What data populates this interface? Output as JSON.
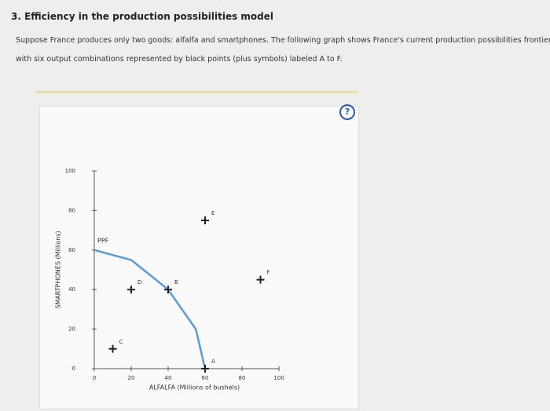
{
  "heading": "3. Efficiency in the production possibilities model",
  "intro": [
    "Suppose France produces only two goods: alfalfa and smartphones. The following graph shows France's current production possibilities frontier, along",
    "with six output combinations represented by black points (plus symbols) labeled A to F."
  ],
  "help": "?",
  "chart_data": {
    "type": "scatter",
    "x_label": "ALFALFA (Millions of bushels)",
    "y_label": "SMARTPHONES (Millions)",
    "xlim": [
      0,
      100
    ],
    "ylim": [
      0,
      100
    ],
    "xticks": [
      0,
      20,
      40,
      60,
      80,
      100
    ],
    "yticks": [
      0,
      20,
      40,
      60,
      80,
      100
    ],
    "series": [
      {
        "name": "PPF",
        "color": "#5b9bd5",
        "x": [
          0,
          20,
          40,
          55,
          60
        ],
        "values": [
          60,
          55,
          40,
          20,
          0
        ]
      }
    ],
    "points": {
      "color": "#222222",
      "labels": [
        "A",
        "B",
        "C",
        "D",
        "E",
        "F"
      ],
      "x": [
        60,
        40,
        10,
        20,
        60,
        90
      ],
      "values": [
        0,
        40,
        10,
        40,
        75,
        45
      ]
    }
  }
}
